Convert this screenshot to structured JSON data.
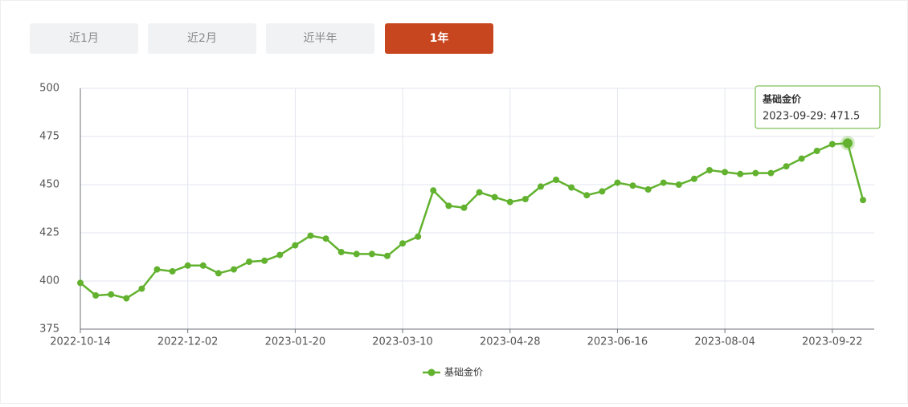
{
  "buttons": [
    {
      "label": "近1月",
      "active": false
    },
    {
      "label": "近2月",
      "active": false
    },
    {
      "label": "近半年",
      "active": false
    },
    {
      "label": "1年",
      "active": true
    }
  ],
  "chart_data": {
    "type": "line",
    "categories": [
      "2022-10-14",
      null,
      null,
      null,
      null,
      null,
      null,
      "2022-12-02",
      null,
      null,
      null,
      null,
      null,
      null,
      "2023-01-20",
      null,
      null,
      null,
      null,
      null,
      null,
      "2023-03-10",
      null,
      null,
      null,
      null,
      null,
      null,
      "2023-04-28",
      null,
      null,
      null,
      null,
      null,
      null,
      "2023-06-16",
      null,
      null,
      null,
      null,
      null,
      null,
      "2023-08-04",
      null,
      null,
      null,
      null,
      null,
      null,
      "2023-09-22",
      null,
      null
    ],
    "series": [
      {
        "name": "基础金价",
        "color": "#62b22f",
        "values": [
          399,
          392.5,
          393,
          391,
          396,
          406,
          405,
          408,
          408,
          404,
          406,
          410,
          410.5,
          413.5,
          418.5,
          423.5,
          422,
          415,
          414,
          414,
          413,
          419.5,
          423,
          447,
          439,
          438,
          446,
          443.5,
          441,
          442.5,
          449,
          452.5,
          448.5,
          444.5,
          446.5,
          451,
          449.5,
          447.5,
          451,
          450,
          453,
          457.5,
          456.5,
          455.5,
          456,
          456,
          459.5,
          463.5,
          467.5,
          471,
          471.5,
          442
        ]
      }
    ],
    "ylim": [
      375,
      500
    ],
    "yticks": [
      375,
      400,
      425,
      450,
      475,
      500
    ],
    "grid": true,
    "tooltip": {
      "title": "基础金价",
      "label": "2023-09-29: 471.5",
      "value": 471.5
    }
  }
}
